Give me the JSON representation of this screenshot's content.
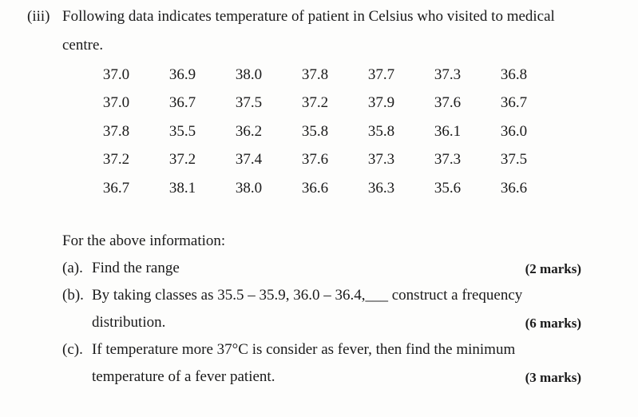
{
  "question": {
    "number": "(iii)",
    "intro_line1": "Following data indicates temperature of patient in Celsius who visited to medical",
    "intro_line2": "centre."
  },
  "data_table": {
    "rows": [
      [
        "37.0",
        "36.9",
        "38.0",
        "37.8",
        "37.7",
        "37.3",
        "36.8"
      ],
      [
        "37.0",
        "36.7",
        "37.5",
        "37.2",
        "37.9",
        "37.6",
        "36.7"
      ],
      [
        "37.8",
        "35.5",
        "36.2",
        "35.8",
        "35.8",
        "36.1",
        "36.0"
      ],
      [
        "37.2",
        "37.2",
        "37.4",
        "37.6",
        "37.3",
        "37.3",
        "37.5"
      ],
      [
        "36.7",
        "38.1",
        "38.0",
        "36.6",
        "36.3",
        "35.6",
        "36.6"
      ]
    ]
  },
  "lead_in": "For the above information:",
  "parts": {
    "a": {
      "label": "(a).",
      "text": "Find the range",
      "marks": "(2 marks)"
    },
    "b": {
      "label": "(b).",
      "text_line1": "By taking classes as 35.5 – 35.9, 36.0 – 36.4,___ construct a frequency",
      "text_line2": "distribution.",
      "marks": "(6 marks)"
    },
    "c": {
      "label": "(c).",
      "text_line1": "If temperature more 37°C is consider as fever, then find the minimum",
      "text_line2": "temperature of a fever patient.",
      "marks": "(3 marks)"
    }
  }
}
